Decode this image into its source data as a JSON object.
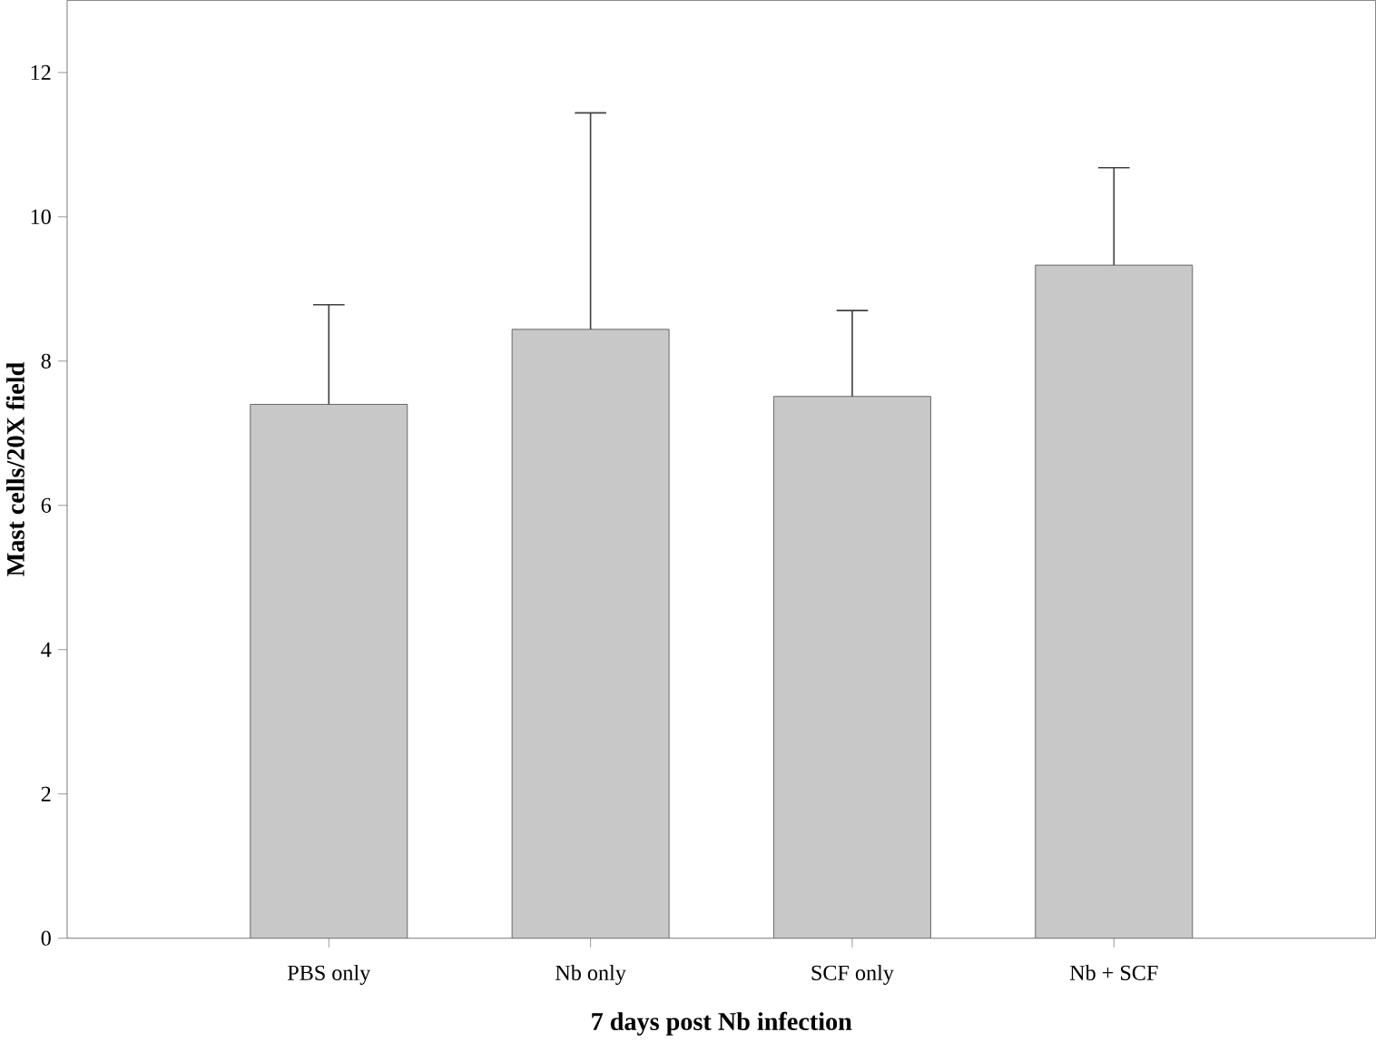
{
  "chart_data": {
    "type": "bar",
    "xlabel": "7 days post Nb infection",
    "ylabel": "Mast cells/20X field",
    "categories": [
      "PBS only",
      "Nb only",
      "SCF only",
      "Nb + SCF"
    ],
    "values": [
      7.4,
      8.44,
      7.51,
      9.33
    ],
    "errors": [
      [
        7.4,
        8.78
      ],
      [
        8.44,
        11.44
      ],
      [
        7.51,
        8.7
      ],
      [
        9.33,
        10.68
      ]
    ],
    "color": "#c8c8c8",
    "ylim": [
      0,
      13
    ],
    "yticks": [
      0,
      2,
      4,
      6,
      8,
      10,
      12
    ],
    "grid": false
  }
}
